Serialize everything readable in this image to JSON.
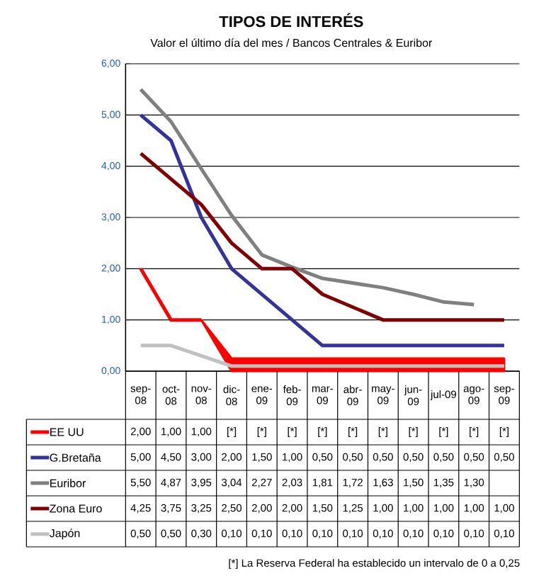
{
  "chart_data": {
    "type": "line",
    "title": "TIPOS DE INTERÉS",
    "subtitle": "Valor el último día del mes / Bancos Centrales & Euribor",
    "categories": [
      "sep-08",
      "oct-08",
      "nov-08",
      "dic-08",
      "ene-09",
      "feb-09",
      "mar-09",
      "abr-09",
      "may-09",
      "jun-09",
      "jul-09",
      "ago-09",
      "sep-09"
    ],
    "series": [
      {
        "name": "EE UU",
        "color": "#ff0000",
        "values": [
          2.0,
          1.0,
          1.0,
          null,
          null,
          null,
          null,
          null,
          null,
          null,
          null,
          null,
          null
        ],
        "lower": [
          null,
          null,
          1.0,
          0,
          0,
          0,
          0,
          0,
          0,
          0,
          0,
          0,
          0
        ],
        "upper": [
          null,
          null,
          1.0,
          0.25,
          0.25,
          0.25,
          0.25,
          0.25,
          0.25,
          0.25,
          0.25,
          0.25,
          0.25
        ],
        "value_labels": [
          "2,00",
          "1,00",
          "1,00",
          "[*]",
          "[*]",
          "[*]",
          "[*]",
          "[*]",
          "[*]",
          "[*]",
          "[*]",
          "[*]",
          "[*]"
        ]
      },
      {
        "name": "G.Bretaña",
        "color": "#333399",
        "values": [
          5.0,
          4.5,
          3.0,
          2.0,
          1.5,
          1.0,
          0.5,
          0.5,
          0.5,
          0.5,
          0.5,
          0.5,
          0.5
        ],
        "value_labels": [
          "5,00",
          "4,50",
          "3,00",
          "2,00",
          "1,50",
          "1,00",
          "0,50",
          "0,50",
          "0,50",
          "0,50",
          "0,50",
          "0,50",
          "0,50"
        ]
      },
      {
        "name": "Euribor",
        "color": "#808080",
        "values": [
          5.5,
          4.87,
          3.95,
          3.04,
          2.27,
          2.03,
          1.81,
          1.72,
          1.63,
          1.5,
          1.35,
          1.3,
          null
        ],
        "value_labels": [
          "5,50",
          "4,87",
          "3,95",
          "3,04",
          "2,27",
          "2,03",
          "1,81",
          "1,72",
          "1,63",
          "1,50",
          "1,35",
          "1,30",
          null
        ]
      },
      {
        "name": "Zona Euro",
        "color": "#800000",
        "values": [
          4.25,
          3.75,
          3.25,
          2.5,
          2.0,
          2.0,
          1.5,
          1.25,
          1.0,
          1.0,
          1.0,
          1.0,
          1.0
        ],
        "value_labels": [
          "4,25",
          "3,75",
          "3,25",
          "2,50",
          "2,00",
          "2,00",
          "1,50",
          "1,25",
          "1,00",
          "1,00",
          "1,00",
          "1,00",
          "1,00"
        ]
      },
      {
        "name": "Japón",
        "color": "#c0c0c0",
        "values": [
          0.5,
          0.5,
          0.3,
          0.1,
          0.1,
          0.1,
          0.1,
          0.1,
          0.1,
          0.1,
          0.1,
          0.1,
          0.1
        ],
        "value_labels": [
          "0,50",
          "0,50",
          "0,30",
          "0,10",
          "0,10",
          "0,10",
          "0,10",
          "0,10",
          "0,10",
          "0,10",
          "0,10",
          "0,10",
          "0,10"
        ]
      }
    ],
    "ylim": [
      0,
      6
    ],
    "yticks": [
      {
        "value": 0,
        "label": "0,00"
      },
      {
        "value": 1,
        "label": "1,00"
      },
      {
        "value": 2,
        "label": "2,00"
      },
      {
        "value": 3,
        "label": "3,00"
      },
      {
        "value": 4,
        "label": "4,00"
      },
      {
        "value": 5,
        "label": "5,00"
      },
      {
        "value": 6,
        "label": "6,00"
      }
    ],
    "grid": "y",
    "legend": "bottom",
    "annotations": [
      "[*] La Reserva Federal ha establecido un intervalo de 0 a 0,25"
    ]
  }
}
